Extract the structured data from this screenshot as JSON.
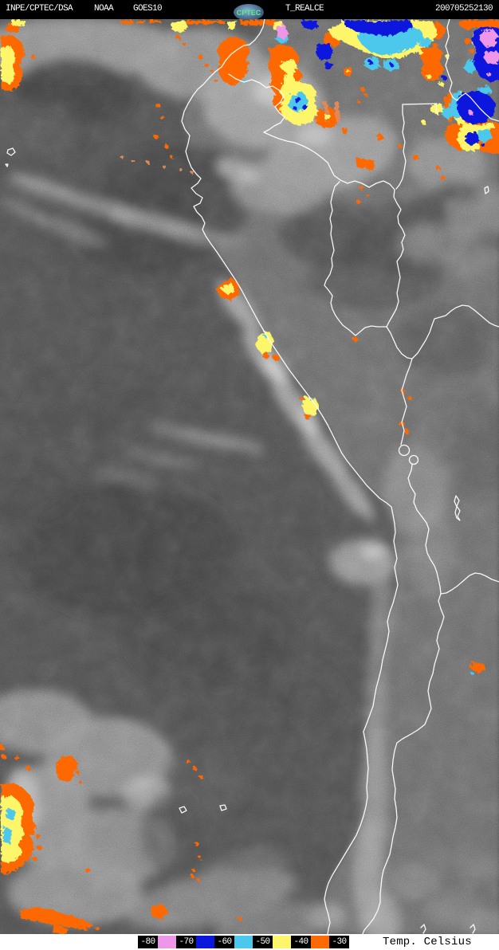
{
  "header": {
    "agency": "INPE/CPTEC/DSA",
    "network": "NOAA",
    "satellite": "GOES10",
    "logo_text": "CPTEC",
    "product": "T_REALCE",
    "timestamp": "200705252130",
    "bg_color": "#000000",
    "fg_color": "#ffffff"
  },
  "legend": {
    "unit_label": "Temp. Celsius",
    "items": [
      {
        "label": "-80",
        "swatch": "#ee96e8"
      },
      {
        "label": "-70",
        "swatch": "#0a18dd"
      },
      {
        "label": "-60",
        "swatch": "#4cc8ec"
      },
      {
        "label": "-50",
        "swatch": "#fdf56a"
      },
      {
        "label": "-40",
        "swatch": "#fd6903"
      },
      {
        "label": "-30",
        "swatch": null
      }
    ]
  },
  "map": {
    "enhancement_palette": {
      "minus80_to_70": "#ee96e8",
      "minus70_to_60": "#0a18dd",
      "minus60_to_50": "#4cc8ec",
      "minus50_to_40": "#fdf56a",
      "minus40_to_30": "#fd6903",
      "warm_ir_base": "#4c4c4c",
      "land_tone": "#6d6d6d",
      "border_line": "#ffffff"
    }
  }
}
